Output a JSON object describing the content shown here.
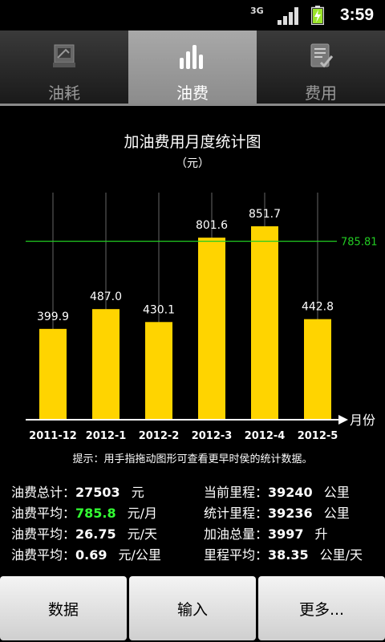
{
  "status_bar": {
    "network": "3G",
    "time": "3:59",
    "battery_color": "#9be52a"
  },
  "tabs": [
    {
      "label": "油耗",
      "icon": "fuel-consumption-icon",
      "active": false
    },
    {
      "label": "油费",
      "icon": "bar-chart-icon",
      "active": true
    },
    {
      "label": "费用",
      "icon": "checklist-icon",
      "active": false
    }
  ],
  "chart": {
    "title": "加油费用月度统计图",
    "unit": "（元）",
    "hint": "提示：用手指拖动图形可查看更早时侯的统计数据。"
  },
  "chart_data": {
    "type": "bar",
    "categories": [
      "2011-12",
      "2012-1",
      "2012-2",
      "2012-3",
      "2012-4",
      "2012-5"
    ],
    "values": [
      399.9,
      487.0,
      430.1,
      801.6,
      851.7,
      442.8
    ],
    "value_labels": [
      "399.9",
      "487.0",
      "430.1",
      "801.6",
      "851.7",
      "442.8"
    ],
    "average": 785.81,
    "average_label": "785.81",
    "xlabel": "月份",
    "ylim": [
      0,
      1000
    ],
    "bar_color": "#ffd400",
    "average_color": "#22cc22",
    "grid": "vertical"
  },
  "stats": {
    "left": [
      {
        "label": "油费总计：",
        "value": "27503",
        "unit": "元",
        "highlight": false
      },
      {
        "label": "油费平均：",
        "value": "785.8",
        "unit": "元/月",
        "highlight": true
      },
      {
        "label": "油费平均：",
        "value": "26.75",
        "unit": "元/天",
        "highlight": false
      },
      {
        "label": "油费平均：",
        "value": "0.69",
        "unit": "元/公里",
        "highlight": false
      }
    ],
    "right": [
      {
        "label": "当前里程：",
        "value": "39240",
        "unit": "公里"
      },
      {
        "label": "统计里程：",
        "value": "39236",
        "unit": "公里"
      },
      {
        "label": "加油总量：",
        "value": "3997",
        "unit": "升"
      },
      {
        "label": "里程平均：",
        "value": "38.35",
        "unit": "公里/天"
      }
    ]
  },
  "buttons": [
    {
      "label": "数据"
    },
    {
      "label": "输入"
    },
    {
      "label": "更多..."
    }
  ]
}
